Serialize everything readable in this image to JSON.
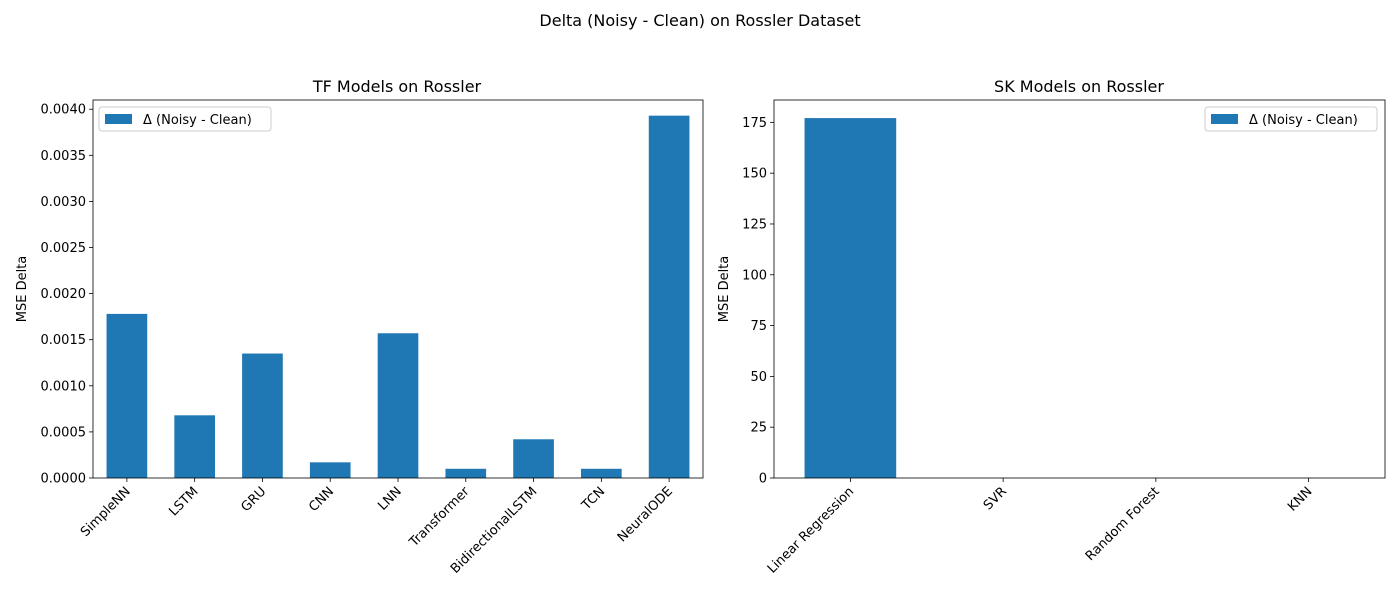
{
  "figure": {
    "title": "Delta (Noisy - Clean) on Rossler Dataset"
  },
  "bar_color": "#1f77b4",
  "chart_data": [
    {
      "type": "bar",
      "title": "TF Models on Rossler",
      "xlabel": "",
      "ylabel": "MSE Delta",
      "categories": [
        "SimpleNN",
        "LSTM",
        "GRU",
        "CNN",
        "LNN",
        "Transformer",
        "BidirectionalLSTM",
        "TCN",
        "NeuralODE"
      ],
      "series": [
        {
          "name": "Δ (Noisy - Clean)",
          "values": [
            0.00178,
            0.00068,
            0.00135,
            0.00017,
            0.00157,
            0.0001,
            0.00042,
            0.0001,
            0.00393
          ]
        }
      ],
      "ylim": [
        0,
        0.0041
      ],
      "yticks": [
        0,
        0.0005,
        0.001,
        0.0015,
        0.002,
        0.0025,
        0.003,
        0.0035,
        0.004
      ],
      "ytick_labels": [
        "0.0000",
        "0.0005",
        "0.0010",
        "0.0015",
        "0.0020",
        "0.0025",
        "0.0030",
        "0.0035",
        "0.0040"
      ],
      "legend": "top-left",
      "grid": false
    },
    {
      "type": "bar",
      "title": "SK Models on Rossler",
      "xlabel": "",
      "ylabel": "MSE Delta",
      "categories": [
        "Linear Regression",
        "SVR",
        "Random Forest",
        "KNN"
      ],
      "series": [
        {
          "name": "Δ (Noisy - Clean)",
          "values": [
            177.1,
            0,
            0,
            0
          ]
        }
      ],
      "ylim": [
        0,
        186
      ],
      "yticks": [
        0,
        25,
        50,
        75,
        100,
        125,
        150,
        175
      ],
      "ytick_labels": [
        "0",
        "25",
        "50",
        "75",
        "100",
        "125",
        "150",
        "175"
      ],
      "legend": "top-right",
      "grid": false
    }
  ]
}
